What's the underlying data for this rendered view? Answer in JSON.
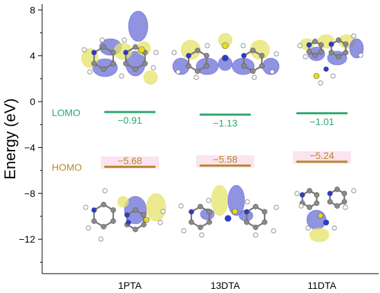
{
  "chart_data": {
    "type": "energy-level diagram",
    "ylabel": "Energy (eV)",
    "ylim": [
      -15,
      8.5
    ],
    "yticks": [
      8,
      4,
      0,
      -4,
      -8,
      -12
    ],
    "categories": [
      "1PTA",
      "13DTA",
      "11DTA"
    ],
    "series": [
      {
        "name": "LOMO",
        "values": [
          -0.91,
          -1.13,
          -1.01
        ],
        "labels": [
          "−0.91",
          "−1.13",
          "−1.01"
        ],
        "color": "#2aa66a"
      },
      {
        "name": "HOMO",
        "values": [
          -5.68,
          -5.58,
          -5.24
        ],
        "labels": [
          "−5.68",
          "−5.58",
          "−5.24"
        ],
        "color": "#b8862a"
      }
    ],
    "tick_labels": [
      "8",
      "4",
      "0",
      "−4",
      "−8",
      "−12"
    ],
    "orbital_colors": {
      "positive": "#6b6fd6",
      "negative": "#e6e36a",
      "carbon": "#8a8a8a",
      "nitrogen": "#2b3bd1",
      "sulfur": "#e8dc1a",
      "hydrogen": "#ffffff"
    },
    "grid": false,
    "legend": "inline-left"
  }
}
